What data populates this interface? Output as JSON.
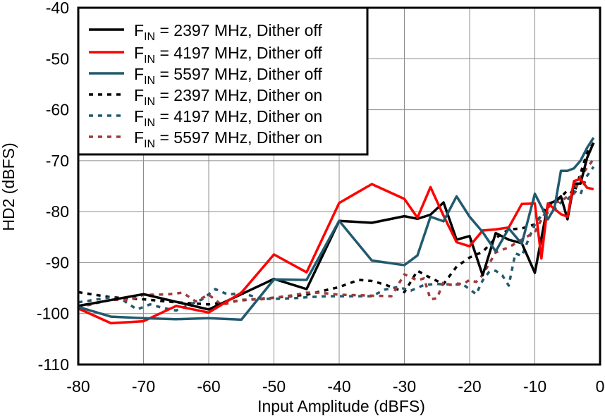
{
  "chart_data": {
    "type": "line",
    "xlabel": "Input Amplitude (dBFS)",
    "ylabel": "HD2 (dBFS)",
    "xlim": [
      -80,
      0
    ],
    "ylim": [
      -110,
      -40
    ],
    "xticks": [
      -80,
      -70,
      -60,
      -50,
      -40,
      -30,
      -20,
      -10,
      0
    ],
    "yticks": [
      -110,
      -100,
      -90,
      -80,
      -70,
      -60,
      -50,
      -40
    ],
    "grid": true,
    "legend_position": "top-left",
    "series": [
      {
        "name": "FIN = 2397 MHz, Dither off",
        "legend_main": "F",
        "legend_sub": "IN",
        "legend_rest": " = 2397 MHz, Dither off",
        "color": "#000000",
        "style": "solid",
        "x": [
          -80,
          -70,
          -60,
          -50,
          -45,
          -40,
          -35,
          -30,
          -28,
          -26,
          -24,
          -22,
          -20,
          -18,
          -16,
          -14,
          -12,
          -10,
          -8,
          -7,
          -6,
          -5,
          -4,
          -3,
          -2,
          -1
        ],
        "y": [
          -98.5,
          -96.2,
          -99.2,
          -93.2,
          -95.2,
          -81.8,
          -82.2,
          -80.9,
          -81.4,
          -80.6,
          -78.2,
          -85.5,
          -84.8,
          -92.5,
          -84.2,
          -85.5,
          -86.2,
          -92,
          -78.5,
          -78,
          -77,
          -81.5,
          -74.5,
          -74.5,
          -69.5,
          -66.5
        ]
      },
      {
        "name": "FIN = 4197 MHz, Dither off",
        "legend_main": "F",
        "legend_sub": "IN",
        "legend_rest": " = 4197 MHz, Dither off",
        "color": "#ff0000",
        "style": "solid",
        "x": [
          -80,
          -75,
          -70,
          -65,
          -60,
          -55,
          -50,
          -45,
          -40,
          -35,
          -30,
          -28,
          -26,
          -24,
          -22,
          -20,
          -18,
          -16,
          -14,
          -12,
          -10,
          -9,
          -8,
          -6,
          -5,
          -4,
          -3,
          -2,
          -1
        ],
        "y": [
          -99,
          -101.9,
          -101.5,
          -98.5,
          -99.8,
          -95.9,
          -88.4,
          -91.9,
          -78.3,
          -74.6,
          -77.5,
          -81.2,
          -75.2,
          -80.8,
          -86,
          -86.8,
          -83.7,
          -83.5,
          -83.1,
          -78.5,
          -78.4,
          -89.2,
          -78.4,
          -80.5,
          -81,
          -74,
          -73.6,
          -75.3,
          -75.6
        ]
      },
      {
        "name": "FIN = 5597 MHz, Dither off",
        "legend_main": "F",
        "legend_sub": "IN",
        "legend_rest": " = 5597 MHz, Dither off",
        "color": "#215a6e",
        "style": "solid",
        "x": [
          -80,
          -75,
          -70,
          -65,
          -60,
          -55,
          -50,
          -45,
          -40,
          -35,
          -30,
          -28,
          -26,
          -24,
          -22,
          -20,
          -18,
          -16,
          -14,
          -12,
          -10,
          -8,
          -7,
          -6,
          -5,
          -4,
          -3,
          -2,
          -1
        ],
        "y": [
          -98.7,
          -100.6,
          -100.9,
          -101.1,
          -100.9,
          -101.2,
          -93.3,
          -93.4,
          -81.8,
          -89.6,
          -90.5,
          -88.6,
          -81,
          -81.9,
          -77,
          -81,
          -84,
          -87.8,
          -83.3,
          -86.3,
          -76.5,
          -81.5,
          -79.3,
          -72,
          -72,
          -71.5,
          -70,
          -67.5,
          -65.5
        ]
      },
      {
        "name": "FIN = 2397 MHz, Dither on",
        "legend_main": "F",
        "legend_sub": "IN",
        "legend_rest": " = 2397 MHz, Dither on",
        "color": "#000000",
        "style": "dashed",
        "x": [
          -80,
          -75,
          -70,
          -65,
          -60,
          -55,
          -50,
          -45,
          -40,
          -37,
          -35,
          -33,
          -30,
          -28,
          -26,
          -24,
          -22,
          -20,
          -18,
          -16,
          -14,
          -12,
          -10,
          -8,
          -6,
          -5,
          -4,
          -3,
          -2,
          -1
        ],
        "y": [
          -95.8,
          -96.8,
          -97.2,
          -97.8,
          -98.2,
          -97.4,
          -96.9,
          -96.3,
          -94.8,
          -93.4,
          -93.6,
          -94.3,
          -95.8,
          -91.6,
          -93,
          -94.2,
          -90.8,
          -89,
          -87.9,
          -85.2,
          -83.5,
          -83.3,
          -82.5,
          -78.8,
          -77.2,
          -75.8,
          -76.5,
          -72.5,
          -68.5,
          -66.5
        ]
      },
      {
        "name": "FIN = 4197 MHz, Dither on",
        "legend_main": "F",
        "legend_sub": "IN",
        "legend_rest": " = 4197 MHz, Dither on",
        "color": "#215a6e",
        "style": "dashed",
        "x": [
          -80,
          -77,
          -75,
          -73,
          -71,
          -69,
          -67,
          -65,
          -63,
          -61,
          -59,
          -57,
          -55,
          -52,
          -50,
          -47,
          -45,
          -42,
          -40,
          -37,
          -35,
          -33,
          -31,
          -29,
          -27,
          -25,
          -23,
          -21,
          -19,
          -18,
          -17,
          -16,
          -15,
          -14,
          -13,
          -12,
          -11,
          -10,
          -9,
          -8,
          -7,
          -6,
          -5,
          -4,
          -3,
          -2,
          -1
        ],
        "y": [
          -97.8,
          -97.2,
          -96.8,
          -97.5,
          -99.2,
          -98.2,
          -98.9,
          -99.4,
          -98.3,
          -97.2,
          -95.2,
          -96.3,
          -95.9,
          -97.1,
          -97.1,
          -97,
          -96.8,
          -96.6,
          -96.6,
          -96.6,
          -96.6,
          -95.3,
          -94.8,
          -95.5,
          -94.4,
          -94.2,
          -94.3,
          -94.3,
          -96.2,
          -93.5,
          -91.8,
          -91.6,
          -92.5,
          -94.5,
          -88.2,
          -88.7,
          -85.5,
          -82.5,
          -80.8,
          -80.2,
          -79.5,
          -78.2,
          -77.7,
          -76,
          -76.6,
          -73,
          -71.2
        ]
      },
      {
        "name": "FIN = 5597 MHz, Dither on",
        "legend_main": "F",
        "legend_sub": "IN",
        "legend_rest": " = 5597 MHz, Dither on",
        "color": "#a13a3a",
        "style": "dashed",
        "x": [
          -80,
          -75,
          -72,
          -70,
          -68,
          -66,
          -64,
          -62,
          -60,
          -58,
          -55,
          -52,
          -50,
          -47,
          -45,
          -43,
          -40,
          -37,
          -35,
          -32,
          -30,
          -28,
          -27,
          -26,
          -25,
          -24,
          -23,
          -22,
          -21,
          -20,
          -19,
          -18,
          -16,
          -14,
          -12,
          -10,
          -8,
          -7,
          -6,
          -5,
          -4,
          -3,
          -2,
          -1
        ],
        "y": [
          -98.8,
          -97.3,
          -97.3,
          -96.3,
          -96.3,
          -96.2,
          -95.9,
          -97.6,
          -96.3,
          -98.3,
          -97.3,
          -97.2,
          -96.9,
          -96.4,
          -95.9,
          -95.9,
          -96.3,
          -96.4,
          -96.5,
          -96.6,
          -92.3,
          -93.5,
          -93.1,
          -97.2,
          -97,
          -93.8,
          -94.4,
          -94.1,
          -94.2,
          -93.4,
          -93.8,
          -92.4,
          -88,
          -87,
          -85.5,
          -84,
          -79.2,
          -78.2,
          -78,
          -77,
          -76.5,
          -73.1,
          -71.4,
          -69.7
        ]
      }
    ]
  }
}
